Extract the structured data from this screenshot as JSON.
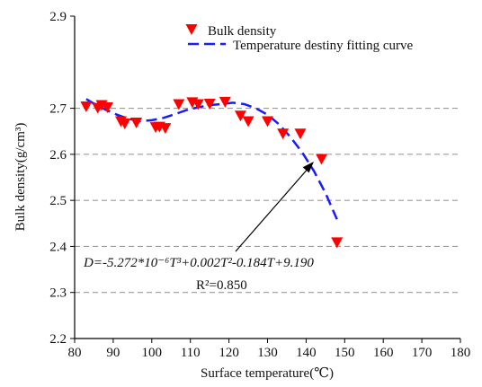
{
  "chart_data": {
    "type": "scatter",
    "xlabel": "Surface temperature(℃)",
    "ylabel": "Bulk density(g/cm³)",
    "xlim": [
      80,
      180
    ],
    "ylim": [
      2.2,
      2.9
    ],
    "x_ticks": [
      "80",
      "90",
      "100",
      "110",
      "120",
      "130",
      "140",
      "150",
      "160",
      "170",
      "180"
    ],
    "y_ticks": [
      "2.2",
      "2.3",
      "2.4",
      "2.5",
      "2.6",
      "2.7",
      "2.9"
    ],
    "grid": "horizontal dashed at 2.3–2.7",
    "legend_placement": "top",
    "series": [
      {
        "name": "Bulk density",
        "marker": "down-triangle",
        "color": "#ff0000",
        "x": [
          83,
          86,
          87,
          88.5,
          92,
          93,
          96,
          101,
          102,
          103.5,
          107,
          110.5,
          112,
          115,
          119,
          123,
          125,
          130,
          134,
          138.5,
          144,
          148
        ],
        "y": [
          2.703,
          2.7,
          2.706,
          2.701,
          2.671,
          2.666,
          2.668,
          2.658,
          2.659,
          2.656,
          2.708,
          2.712,
          2.708,
          2.709,
          2.713,
          2.683,
          2.671,
          2.671,
          2.644,
          2.644,
          2.589,
          2.408
        ]
      },
      {
        "name": "Temperature destiny fitting curve",
        "line": "dashed",
        "color": "#1a1aff",
        "x": [
          83,
          85,
          88,
          91,
          94,
          97,
          100,
          103,
          106,
          109,
          112,
          115,
          118,
          121,
          124,
          127,
          130,
          133,
          136,
          139,
          142,
          145,
          148
        ],
        "y": [
          2.72,
          2.71,
          2.697,
          2.686,
          2.677,
          2.672,
          2.674,
          2.679,
          2.687,
          2.696,
          2.702,
          2.707,
          2.709,
          2.712,
          2.709,
          2.7,
          2.686,
          2.665,
          2.637,
          2.604,
          2.564,
          2.516,
          2.459
        ]
      }
    ],
    "annotations": {
      "equation": "D=-5.272*10⁻⁶T³+0.002T²-0.184T+9.190",
      "r_squared": "R²=0.850"
    }
  },
  "colors": {
    "marker": "#ff0000",
    "fit_line": "#1a1aff",
    "grid": "#9a9a9a",
    "axis": "#000000"
  }
}
